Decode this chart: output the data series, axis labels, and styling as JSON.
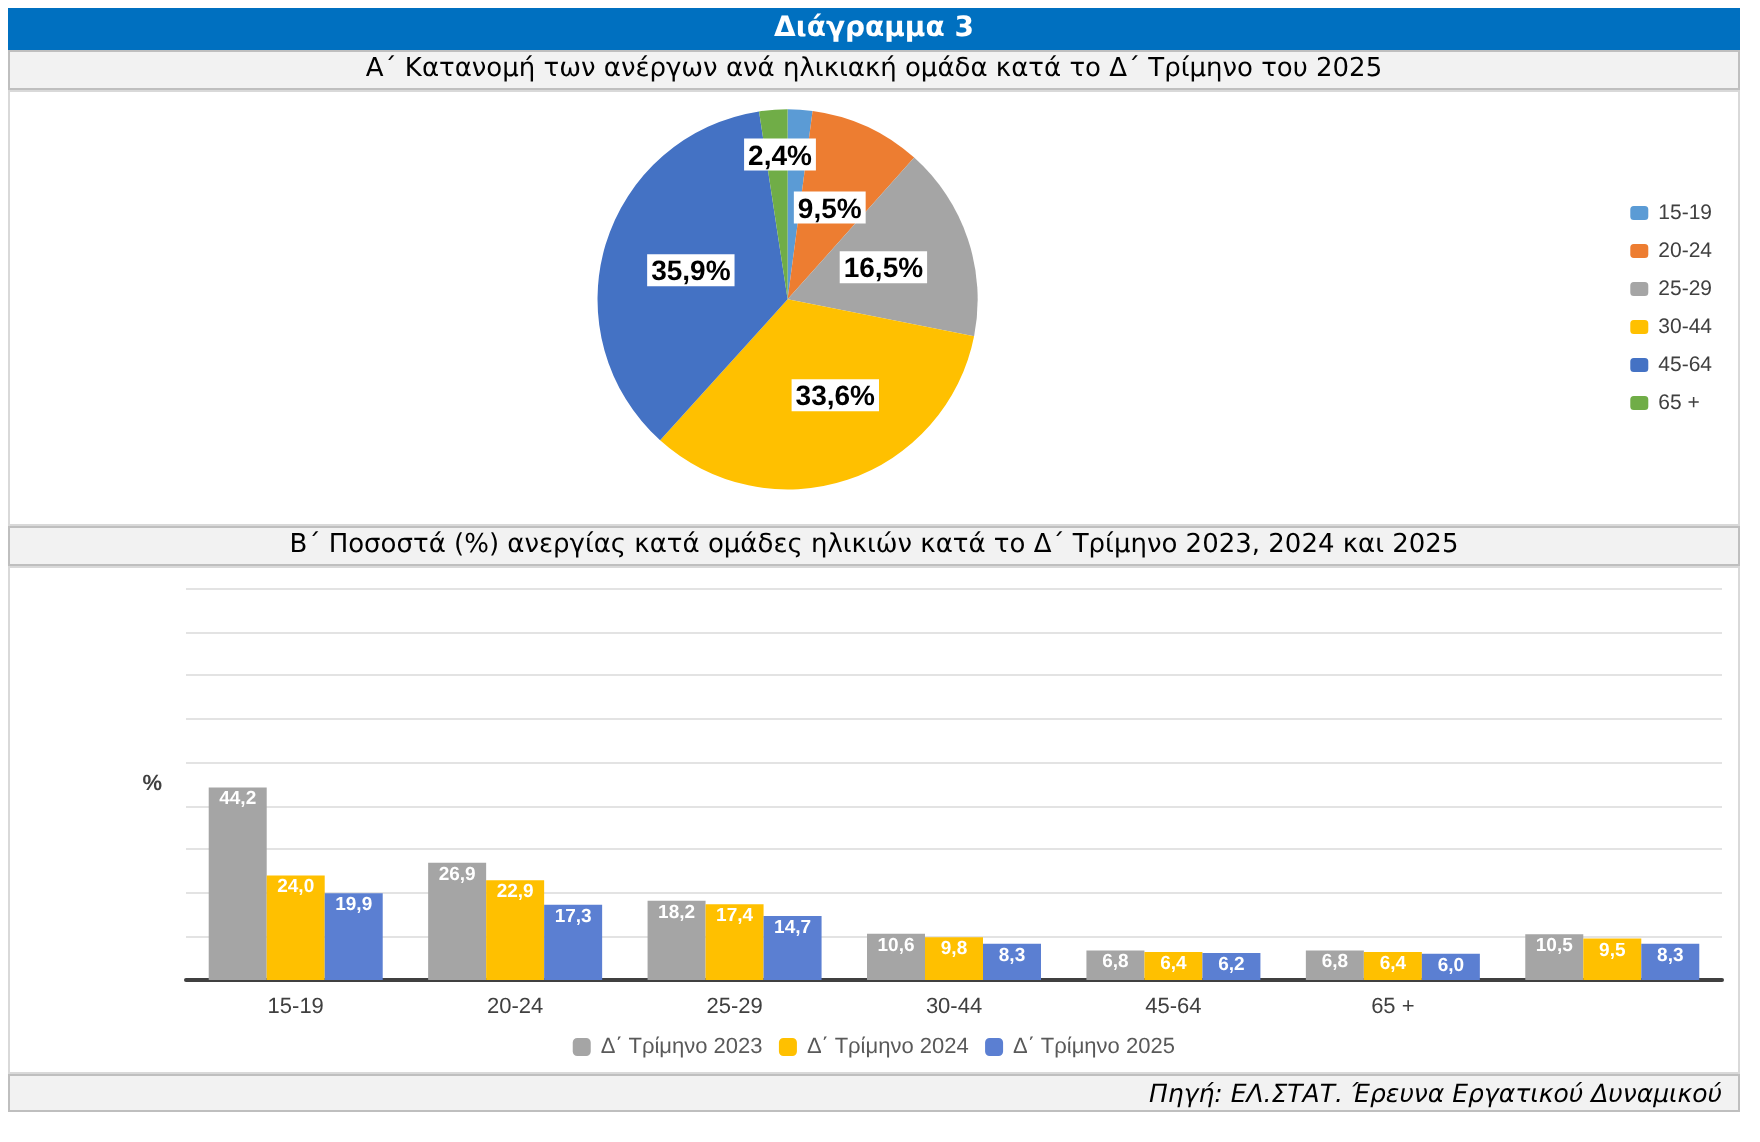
{
  "chart_data": [
    {
      "type": "pie",
      "title": "Διάγραμμα 3",
      "subtitle": "Α΄ Κατανομή των ανέργων ανά ηλικιακή ομάδα κατά το Δ΄ Τρίμηνο του 2025",
      "categories": [
        "15-19",
        "20-24",
        "25-29",
        "30-44",
        "45-64",
        "65 +"
      ],
      "values": [
        2.1,
        9.5,
        16.5,
        33.6,
        35.9,
        2.4
      ],
      "colors": [
        "#5b9bd5",
        "#ed7d31",
        "#a5a5a5",
        "#ffc000",
        "#4472c4",
        "#70ad47"
      ],
      "value_labels": [
        null,
        "9,5%",
        "16,5%",
        "33,6%",
        "35,9%",
        "2,4%"
      ],
      "legend": "right"
    },
    {
      "type": "bar",
      "title": "Β΄ Ποσοστά (%) ανεργίας κατά ομάδες ηλικιών κατά το Δ΄ Τρίμηνο 2023, 2024 και 2025",
      "ylabel": "%",
      "categories": [
        "15-19",
        "20-24",
        "25-29",
        "30-44",
        "45-64",
        "65 +",
        null
      ],
      "series": [
        {
          "name": "Δ΄ Τρίμηνο 2023",
          "color": "#a5a5a5",
          "values": [
            44.2,
            26.9,
            18.2,
            10.6,
            6.8,
            6.8,
            10.5
          ],
          "value_labels": [
            "44,2",
            "26,9",
            "18,2",
            "10,6",
            "6,8",
            "6,8",
            "10,5"
          ]
        },
        {
          "name": "Δ΄ Τρίμηνο 2024",
          "color": "#ffc000",
          "values": [
            24.0,
            22.9,
            17.4,
            9.8,
            6.4,
            6.4,
            9.5
          ],
          "value_labels": [
            "24,0",
            "22,9",
            "17,4",
            "9,8",
            "6,4",
            "6,4",
            "9,5"
          ]
        },
        {
          "name": "Δ΄ Τρίμηνο 2025",
          "color": "#5b7fd2",
          "values": [
            19.9,
            17.3,
            14.7,
            8.3,
            6.2,
            6.0,
            8.3
          ],
          "value_labels": [
            "19,9",
            "17,3",
            "14,7",
            "8,3",
            "6,2",
            "6,0",
            "8,3"
          ]
        }
      ],
      "ylim": [
        0,
        90
      ],
      "yticks": [
        {
          "value": 0,
          "label": null
        },
        {
          "value": 10,
          "label": null
        },
        {
          "value": 20,
          "label": null
        },
        {
          "value": 30,
          "label": null
        },
        {
          "value": 40,
          "label": null
        },
        {
          "value": 50,
          "label": null
        },
        {
          "value": 60,
          "label": null
        },
        {
          "value": 70,
          "label": null
        },
        {
          "value": 80,
          "label": null
        },
        {
          "value": 90,
          "label": null
        }
      ],
      "grid": "y",
      "legend": "bottom",
      "tick_labels": "x",
      "annotations": [
        "Πηγή: ΕΛ.ΣΤΑΤ. Έρευνα Εργατικού Δυναμικού"
      ]
    }
  ]
}
